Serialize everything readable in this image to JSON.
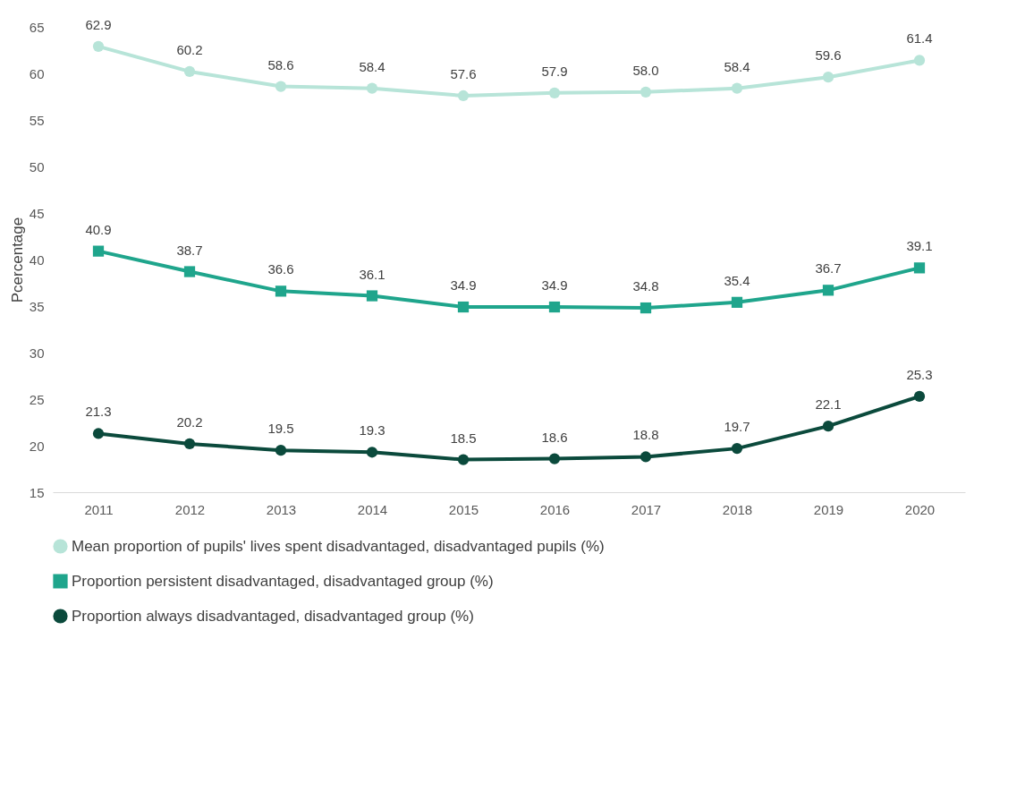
{
  "chart_data": {
    "type": "line",
    "ylabel": "Pcercentage",
    "categories": [
      "2011",
      "2012",
      "2013",
      "2014",
      "2015",
      "2016",
      "2017",
      "2018",
      "2019",
      "2020"
    ],
    "ylim": [
      15,
      65
    ],
    "yticks": [
      15,
      20,
      25,
      30,
      35,
      40,
      45,
      50,
      55,
      60,
      65
    ],
    "grid": false,
    "legend": "bottom",
    "line_style": "solid",
    "series": [
      {
        "name": "Mean proportion of pupils' lives spent disadvantaged, disadvantaged pupils (%)",
        "color": "#b7e4d8",
        "marker": "circle",
        "values": [
          62.9,
          60.2,
          58.6,
          58.4,
          57.6,
          57.9,
          58.0,
          58.4,
          59.6,
          61.4
        ],
        "value_labels": [
          "62.9",
          "60.2",
          "58.6",
          "58.4",
          "57.6",
          "57.9",
          "58.0",
          "58.4",
          "59.6",
          "61.4"
        ]
      },
      {
        "name": "Proportion persistent disadvantaged, disadvantaged group (%)",
        "color": "#1fa58c",
        "marker": "square",
        "values": [
          40.9,
          38.7,
          36.6,
          36.1,
          34.9,
          34.9,
          34.8,
          35.4,
          36.7,
          39.1
        ],
        "value_labels": [
          "40.9",
          "38.7",
          "36.6",
          "36.1",
          "34.9",
          "34.9",
          "34.8",
          "35.4",
          "36.7",
          "39.1"
        ]
      },
      {
        "name": "Proportion always disadvantaged, disadvantaged group (%)",
        "color": "#0b4a3c",
        "marker": "circle",
        "values": [
          21.3,
          20.2,
          19.5,
          19.3,
          18.5,
          18.6,
          18.8,
          19.7,
          22.1,
          25.3
        ],
        "value_labels": [
          "21.3",
          "20.2",
          "19.5",
          "19.3",
          "18.5",
          "18.6",
          "18.8",
          "19.7",
          "22.1",
          "25.3"
        ]
      }
    ]
  }
}
